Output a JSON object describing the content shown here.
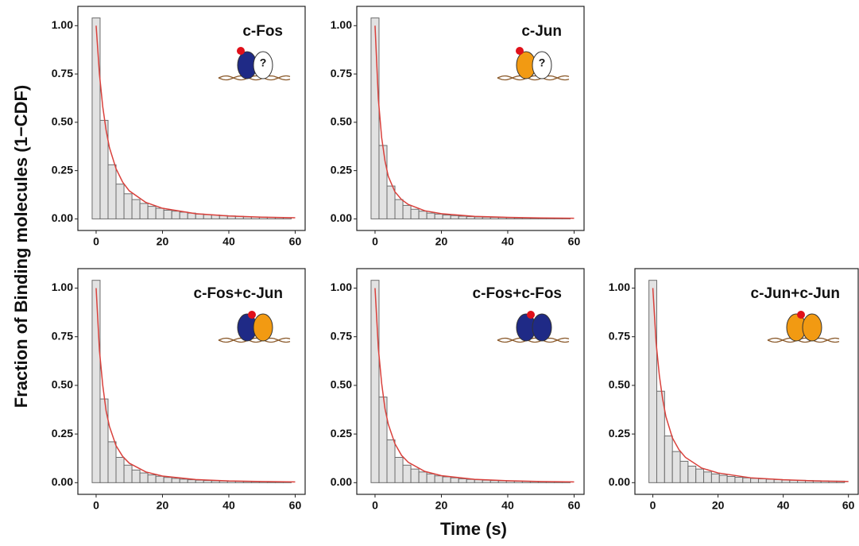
{
  "y_label": "Fraction of Binding molecules (1−CDF)",
  "x_label": "Time (s)",
  "chart_data": [
    {
      "type": "histogram",
      "title": "c-Fos",
      "icon_text": "?",
      "bins": [
        -1.2,
        1.2,
        3.6,
        6,
        8.4,
        10.8,
        13.2,
        15.6,
        18,
        20.4,
        22.8,
        25.2,
        27.6,
        30,
        32.4,
        34.8,
        37.2,
        39.6,
        42,
        44.4,
        46.8,
        49.2,
        51.6,
        54,
        56.4,
        58.8
      ],
      "counts": [
        1.04,
        0.51,
        0.28,
        0.18,
        0.13,
        0.1,
        0.08,
        0.065,
        0.055,
        0.045,
        0.04,
        0.035,
        0.03,
        0.025,
        0.022,
        0.02,
        0.017,
        0.015,
        0.013,
        0.011,
        0.01,
        0.009,
        0.008,
        0.007,
        0.006
      ],
      "bar_color": "#e2e2e2",
      "fit": {
        "color": "#d9413c",
        "x": [
          0,
          1,
          2,
          3,
          4,
          6,
          8,
          10,
          15,
          20,
          30,
          40,
          50,
          60
        ],
        "values": [
          1.0,
          0.75,
          0.58,
          0.46,
          0.37,
          0.26,
          0.19,
          0.145,
          0.085,
          0.055,
          0.027,
          0.015,
          0.009,
          0.006
        ]
      },
      "xlim": [
        -5.5,
        63
      ],
      "ylim": [
        -0.06,
        1.1
      ],
      "xticks": [
        0,
        20,
        40,
        60
      ],
      "yticks": [
        {
          "value": 0,
          "label": "0.00"
        },
        {
          "value": 0.25,
          "label": "0.25"
        },
        {
          "value": 0.5,
          "label": "0.50"
        },
        {
          "value": 0.75,
          "label": "0.75"
        },
        {
          "value": 1,
          "label": "1.00"
        }
      ]
    },
    {
      "type": "histogram",
      "title": "c-Jun",
      "icon_text": "?",
      "bins": [
        -1.2,
        1.2,
        3.6,
        6,
        8.4,
        10.8,
        13.2,
        15.6,
        18,
        20.4,
        22.8,
        25.2,
        27.6,
        30,
        32.4,
        34.8,
        37.2,
        39.6,
        42,
        44.4,
        46.8,
        49.2,
        51.6,
        54,
        56.4,
        58.8
      ],
      "counts": [
        1.04,
        0.38,
        0.17,
        0.1,
        0.07,
        0.05,
        0.04,
        0.03,
        0.025,
        0.02,
        0.017,
        0.014,
        0.012,
        0.01,
        0.009,
        0.008,
        0.007,
        0.006,
        0.005,
        0.005,
        0.004,
        0.004,
        0.003,
        0.003,
        0.003
      ],
      "bar_color": "#e2e2e2",
      "fit": {
        "color": "#d9413c",
        "x": [
          0,
          1,
          2,
          3,
          4,
          6,
          8,
          10,
          15,
          20,
          30,
          40,
          50,
          60
        ],
        "values": [
          1.0,
          0.62,
          0.42,
          0.3,
          0.22,
          0.14,
          0.1,
          0.075,
          0.042,
          0.027,
          0.013,
          0.008,
          0.005,
          0.003
        ]
      },
      "xlim": [
        -5.5,
        63
      ],
      "ylim": [
        -0.06,
        1.1
      ],
      "xticks": [
        0,
        20,
        40,
        60
      ],
      "yticks": [
        {
          "value": 0,
          "label": "0.00"
        },
        {
          "value": 0.25,
          "label": "0.25"
        },
        {
          "value": 0.5,
          "label": "0.50"
        },
        {
          "value": 0.75,
          "label": "0.75"
        },
        {
          "value": 1,
          "label": "1.00"
        }
      ]
    },
    {
      "type": "histogram",
      "title": "c-Fos+c-Jun",
      "bins": [
        -1.2,
        1.2,
        3.6,
        6,
        8.4,
        10.8,
        13.2,
        15.6,
        18,
        20.4,
        22.8,
        25.2,
        27.6,
        30,
        32.4,
        34.8,
        37.2,
        39.6,
        42,
        44.4,
        46.8,
        49.2,
        51.6,
        54,
        56.4,
        58.8
      ],
      "counts": [
        1.04,
        0.43,
        0.21,
        0.13,
        0.09,
        0.065,
        0.05,
        0.04,
        0.033,
        0.027,
        0.022,
        0.018,
        0.015,
        0.013,
        0.011,
        0.01,
        0.009,
        0.008,
        0.007,
        0.006,
        0.005,
        0.005,
        0.004,
        0.004,
        0.003
      ],
      "bar_color": "#e2e2e2",
      "fit": {
        "color": "#d9413c",
        "x": [
          0,
          1,
          2,
          3,
          4,
          6,
          8,
          10,
          15,
          20,
          30,
          40,
          50,
          60
        ],
        "values": [
          1.0,
          0.68,
          0.5,
          0.37,
          0.29,
          0.19,
          0.135,
          0.1,
          0.055,
          0.034,
          0.016,
          0.009,
          0.006,
          0.004
        ]
      },
      "xlim": [
        -5.5,
        63
      ],
      "ylim": [
        -0.06,
        1.1
      ],
      "xticks": [
        0,
        20,
        40,
        60
      ],
      "yticks": [
        {
          "value": 0,
          "label": "0.00"
        },
        {
          "value": 0.25,
          "label": "0.25"
        },
        {
          "value": 0.5,
          "label": "0.50"
        },
        {
          "value": 0.75,
          "label": "0.75"
        },
        {
          "value": 1,
          "label": "1.00"
        }
      ]
    },
    {
      "type": "histogram",
      "title": "c-Fos+c-Fos",
      "bins": [
        -1.2,
        1.2,
        3.6,
        6,
        8.4,
        10.8,
        13.2,
        15.6,
        18,
        20.4,
        22.8,
        25.2,
        27.6,
        30,
        32.4,
        34.8,
        37.2,
        39.6,
        42,
        44.4,
        46.8,
        49.2,
        51.6,
        54,
        56.4,
        58.8
      ],
      "counts": [
        1.04,
        0.44,
        0.22,
        0.13,
        0.09,
        0.07,
        0.055,
        0.045,
        0.035,
        0.03,
        0.025,
        0.02,
        0.017,
        0.015,
        0.013,
        0.011,
        0.01,
        0.009,
        0.008,
        0.007,
        0.006,
        0.005,
        0.005,
        0.004,
        0.004
      ],
      "bar_color": "#e2e2e2",
      "fit": {
        "color": "#d9413c",
        "x": [
          0,
          1,
          2,
          3,
          4,
          6,
          8,
          10,
          15,
          20,
          30,
          40,
          50,
          60
        ],
        "values": [
          1.0,
          0.69,
          0.51,
          0.38,
          0.3,
          0.2,
          0.14,
          0.105,
          0.058,
          0.036,
          0.017,
          0.01,
          0.006,
          0.004
        ]
      },
      "xlim": [
        -5.5,
        63
      ],
      "ylim": [
        -0.06,
        1.1
      ],
      "xticks": [
        0,
        20,
        40,
        60
      ],
      "yticks": [
        {
          "value": 0,
          "label": "0.00"
        },
        {
          "value": 0.25,
          "label": "0.25"
        },
        {
          "value": 0.5,
          "label": "0.50"
        },
        {
          "value": 0.75,
          "label": "0.75"
        },
        {
          "value": 1,
          "label": "1.00"
        }
      ]
    },
    {
      "type": "histogram",
      "title": "c-Jun+c-Jun",
      "bins": [
        -1.2,
        1.2,
        3.6,
        6,
        8.4,
        10.8,
        13.2,
        15.6,
        18,
        20.4,
        22.8,
        25.2,
        27.6,
        30,
        32.4,
        34.8,
        37.2,
        39.6,
        42,
        44.4,
        46.8,
        49.2,
        51.6,
        54,
        56.4,
        58.8
      ],
      "counts": [
        1.04,
        0.47,
        0.24,
        0.16,
        0.11,
        0.085,
        0.07,
        0.055,
        0.045,
        0.038,
        0.032,
        0.028,
        0.025,
        0.022,
        0.02,
        0.018,
        0.016,
        0.014,
        0.013,
        0.012,
        0.011,
        0.01,
        0.009,
        0.008,
        0.008
      ],
      "bar_color": "#e2e2e2",
      "fit": {
        "color": "#d9413c",
        "x": [
          0,
          1,
          2,
          3,
          4,
          6,
          8,
          10,
          15,
          20,
          30,
          40,
          50,
          60
        ],
        "values": [
          1.0,
          0.72,
          0.55,
          0.43,
          0.34,
          0.23,
          0.17,
          0.13,
          0.075,
          0.05,
          0.025,
          0.015,
          0.009,
          0.006
        ]
      },
      "xlim": [
        -5.5,
        63
      ],
      "ylim": [
        -0.06,
        1.1
      ],
      "xticks": [
        0,
        20,
        40,
        60
      ],
      "yticks": [
        {
          "value": 0,
          "label": "0.00"
        },
        {
          "value": 0.25,
          "label": "0.25"
        },
        {
          "value": 0.5,
          "label": "0.50"
        },
        {
          "value": 0.75,
          "label": "0.75"
        },
        {
          "value": 1,
          "label": "1.00"
        }
      ]
    }
  ]
}
